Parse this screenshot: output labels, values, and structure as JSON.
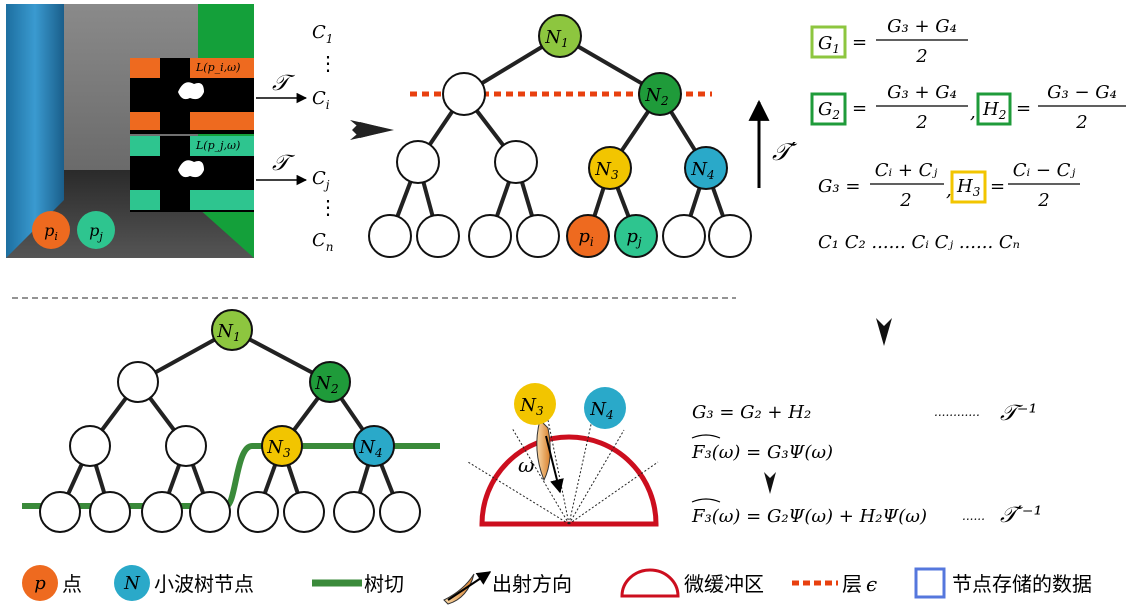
{
  "colors": {
    "orange": "#ee6a1f",
    "teal": "#2ec58f",
    "light_green": "#8dc63f",
    "dark_green": "#1f9b3a",
    "yellow": "#f2c500",
    "blue": "#2aa9c9",
    "red_dash": "#e8400f",
    "cut_green": "#3a8a3a",
    "buffer_red": "#cc0e1e",
    "storage_blue": "#5577dd"
  },
  "scene": {
    "pi_label": "p_i",
    "pj_label": "p_j",
    "texture_i_label": "L(p_i,ω)",
    "texture_j_label": "L(p_j,ω)"
  },
  "transform": {
    "op": "𝒯",
    "op_prime": "𝒯′",
    "c1": "C",
    "ci": "C",
    "cj": "C",
    "cn": "C",
    "vdots": "⋮"
  },
  "tree_top": {
    "n1": "N",
    "n2": "N",
    "n3": "N",
    "n4": "N",
    "pi": "p",
    "pj": "p"
  },
  "equations": {
    "g1_lhs": "G",
    "g1_rhs_num": "G₃ + G₄",
    "g1_rhs_den": "2",
    "g2_lhs": "G",
    "g2_rhs_num": "G₃ + G₄",
    "g2_rhs_den": "2",
    "h2_lhs": "H",
    "h2_rhs_num": "G₃ − G₄",
    "h2_rhs_den": "2",
    "g3_lhs": "G₃ =",
    "g3_rhs_num": "Cᵢ + Cⱼ",
    "g3_rhs_den": "2",
    "h3_lhs": "H",
    "h3_rhs_num": "Cᵢ − Cⱼ",
    "h3_rhs_den": "2",
    "c_row": "C₁ C₂ ...... Cᵢ Cⱼ ...... Cₙ"
  },
  "reconstruction": {
    "line1": "G₃ = G₂ + H₂",
    "line1_dots": "............",
    "line1_op": "𝒯⁻¹",
    "line2": "F₃(ω) = G₃Ψ(ω)",
    "line3": "F₃(ω) = G₂Ψ(ω) + H₂Ψ(ω)",
    "line3_dots": "......",
    "line3_op": "𝒯′⁻¹"
  },
  "hemisphere": {
    "n3": "N",
    "n4": "N",
    "omega": "ω"
  },
  "legend": {
    "p_symbol": "p",
    "p_text": "点",
    "n_symbol": "N",
    "n_text": "小波树节点",
    "cut_text": "树切",
    "dir_text": "出射方向",
    "buffer_text": "微缓冲区",
    "layer_text": "层",
    "layer_symbol": "ϵ",
    "storage_text": "节点存储的数据"
  }
}
